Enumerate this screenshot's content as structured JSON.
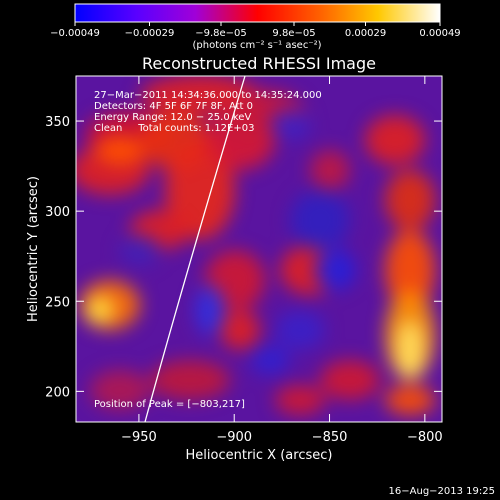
{
  "chart_data": {
    "type": "heatmap",
    "title": "Reconstructed RHESSI Image",
    "xlabel": "Heliocentric X (arcsec)",
    "ylabel": "Heliocentric Y (arcsec)",
    "xlim": [
      -983,
      -791
    ],
    "ylim": [
      183,
      375
    ],
    "x_ticks": [
      {
        "value": -950,
        "label": "−950"
      },
      {
        "value": -900,
        "label": "−900"
      },
      {
        "value": -850,
        "label": "−850"
      },
      {
        "value": -800,
        "label": "−800"
      }
    ],
    "y_ticks": [
      {
        "value": 200,
        "label": "200"
      },
      {
        "value": 250,
        "label": "250"
      },
      {
        "value": 300,
        "label": "300"
      },
      {
        "value": 350,
        "label": "350"
      }
    ],
    "colorbar": {
      "range": [
        -0.00049,
        0.00049
      ],
      "tick_values": [
        -0.00049,
        -0.00029,
        -9.8e-05,
        9.8e-05,
        0.00029,
        0.00049
      ],
      "tick_labels": [
        "−0.00049",
        "−0.00029",
        "−9.8e−05",
        "9.8e−05",
        "0.00029",
        "0.00049"
      ],
      "unit_label": "(photons cm⁻² s⁻¹ asec⁻²)",
      "colors": [
        "#0000ff",
        "#6e00ff",
        "#b400c8",
        "#ff0000",
        "#ff7800",
        "#ffdc00",
        "#ffffff"
      ]
    },
    "info_lines": [
      "27−Mar−2011 14:34:36.000 to 14:35:24.000",
      "Detectors: 4F 5F 6F 7F 8F, Att 0",
      "Energy Range: 12.0 − 25.0 keV",
      "Clean     Total counts: 1.12E+03"
    ],
    "peak_text": "Position of Peak = [−803,217]",
    "peak": {
      "x": -803,
      "y": 217
    },
    "grid": false
  },
  "timestamp": "16−Aug−2013 19:25"
}
